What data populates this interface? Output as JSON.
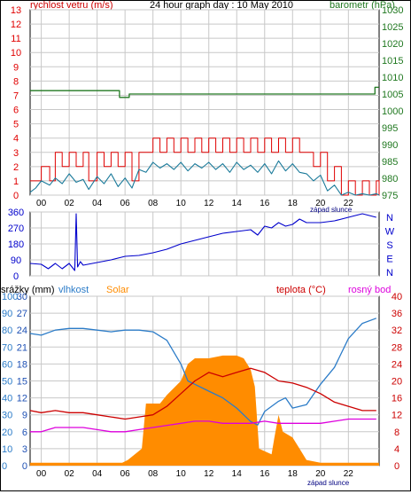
{
  "header": {
    "left_title": "rychlost vetru (m/s)",
    "center_title": "24 hour graph day : 10 May 2010",
    "right_title": "barometr (hPa)"
  },
  "x_axis": {
    "tick_labels": [
      "00",
      "02",
      "04",
      "06",
      "08",
      "10",
      "12",
      "14",
      "16",
      "18",
      "20",
      "22"
    ],
    "sunset_label": "západ slunce"
  },
  "legend": {
    "precip": "srážky (mm)",
    "humidity": "vlhkost",
    "solar": "Solar",
    "temperature": "teplota (°C)",
    "dewpoint": "rosný bod"
  },
  "colors": {
    "wind_gust": "#e00000",
    "wind_avg": "#1a7a9a",
    "pressure": "#207820",
    "direction": "#0000cc",
    "humidity": "#2c7cc8",
    "solar": "#ff8c00",
    "temperature": "#cc0000",
    "dewpoint": "#dd00dd",
    "grid": "#c8c8c8",
    "precip_axis": "#1e50b4",
    "temp_axis": "#cc0000"
  },
  "chart_data": [
    {
      "id": "wind-pressure",
      "type": "line",
      "x_range": [
        -0.8,
        24.2
      ],
      "left_axis": {
        "ylim": [
          0,
          13
        ],
        "ticks": [
          0,
          1,
          2,
          3,
          4,
          5,
          6,
          7,
          8,
          9,
          10,
          11,
          12,
          13
        ]
      },
      "right_axis": {
        "ylim": [
          975,
          1030
        ],
        "ticks": [
          975,
          980,
          985,
          990,
          995,
          1000,
          1005,
          1010,
          1015,
          1020,
          1025,
          1030
        ]
      },
      "series": [
        {
          "key": "gust",
          "axis": "left",
          "x": [
            -0.8,
            -0.4,
            0,
            0.6,
            1,
            1.5,
            2,
            2.5,
            3,
            3.4,
            4,
            4.5,
            5,
            5.5,
            6,
            6.5,
            7,
            7.5,
            8,
            8.5,
            9,
            9.5,
            10,
            10.5,
            11,
            11.5,
            12,
            12.5,
            13,
            13.5,
            14,
            14.5,
            15,
            15.5,
            16,
            16.5,
            17,
            17.5,
            18,
            18.5,
            19,
            19.5,
            20,
            20.5,
            21,
            21.5,
            22,
            22.5,
            23,
            23.5,
            24,
            24.2
          ],
          "values": [
            1,
            1,
            2,
            1,
            3,
            2,
            3,
            2,
            3,
            1,
            3,
            2,
            3,
            2,
            3,
            1,
            3,
            3,
            4,
            3,
            4,
            3,
            4,
            3,
            4,
            3,
            4,
            3,
            4,
            3,
            4,
            3,
            4,
            3,
            4,
            3,
            4,
            3,
            4,
            3,
            3,
            2,
            3,
            1,
            2,
            0,
            1,
            0,
            1,
            0,
            1,
            0
          ]
        },
        {
          "key": "avg",
          "axis": "left",
          "x": [
            -0.8,
            -0.4,
            0,
            0.6,
            1,
            1.5,
            2,
            2.5,
            3,
            3.4,
            4,
            4.5,
            5,
            5.5,
            6,
            6.5,
            7,
            7.5,
            8,
            8.5,
            9,
            9.5,
            10,
            10.5,
            11,
            11.5,
            12,
            12.5,
            13,
            13.5,
            14,
            14.5,
            15,
            15.5,
            16,
            16.5,
            17,
            17.5,
            18,
            18.5,
            19,
            19.5,
            20,
            20.5,
            21,
            21.5,
            22,
            22.5,
            23,
            23.5,
            24,
            24.2
          ],
          "values": [
            0.2,
            0.5,
            1,
            0.7,
            1.2,
            0.8,
            1.5,
            0.9,
            1.1,
            0.4,
            1.3,
            0.8,
            1.5,
            0.6,
            1.2,
            0.5,
            1.8,
            1.6,
            2.3,
            1.9,
            2.2,
            1.8,
            2.3,
            1.7,
            2.2,
            1.9,
            2.3,
            1.8,
            2.2,
            1.6,
            2.3,
            1.8,
            2.1,
            1.6,
            2.2,
            1.5,
            2.4,
            1.7,
            2.2,
            1.6,
            1.5,
            1,
            1.4,
            0.3,
            0.7,
            0,
            0.2,
            0,
            0.1,
            0,
            0.1,
            0
          ]
        },
        {
          "key": "pressure",
          "axis": "right",
          "x": [
            -0.8,
            5.5,
            5.6,
            6.2,
            6.3,
            19.6,
            19.7,
            23.8,
            23.9,
            24.2
          ],
          "values": [
            1006,
            1006,
            1004,
            1004,
            1005,
            1005,
            1005,
            1005,
            1007,
            1007
          ]
        }
      ]
    },
    {
      "id": "wind-direction",
      "type": "line",
      "x_range": [
        -0.8,
        24.2
      ],
      "ylim": [
        0,
        360
      ],
      "ticks": [
        0,
        90,
        180,
        270,
        360
      ],
      "compass": [
        "N",
        "W",
        "S",
        "E",
        "N"
      ],
      "series": [
        {
          "key": "direction",
          "x": [
            -0.8,
            0,
            0.5,
            1,
            1.5,
            2,
            2.4,
            2.5,
            2.6,
            2.8,
            3,
            4,
            5,
            6,
            7,
            8,
            9,
            10,
            11,
            12,
            13,
            14,
            15,
            15.5,
            16,
            16.5,
            17,
            17.5,
            18,
            18.5,
            19,
            20,
            21,
            22,
            23,
            24
          ],
          "values": [
            70,
            65,
            40,
            70,
            40,
            70,
            30,
            350,
            50,
            80,
            60,
            75,
            90,
            110,
            115,
            130,
            150,
            180,
            200,
            220,
            240,
            250,
            260,
            230,
            280,
            270,
            300,
            280,
            290,
            320,
            300,
            300,
            310,
            330,
            350,
            330
          ]
        }
      ]
    },
    {
      "id": "temp-humidity-solar",
      "type": "line",
      "x_range": [
        -0.8,
        24.2
      ],
      "left_axes": {
        "precip": {
          "ylim": [
            0,
            30
          ],
          "ticks": [
            0,
            3,
            6,
            9,
            12,
            15,
            18,
            21,
            24,
            27,
            30
          ]
        },
        "humidity": {
          "ylim": [
            0,
            100
          ],
          "ticks": [
            0,
            10,
            20,
            30,
            40,
            50,
            60,
            70,
            80,
            90,
            100
          ]
        }
      },
      "right_axis": {
        "ylim": [
          0,
          40
        ],
        "ticks": [
          0,
          4,
          8,
          12,
          16,
          20,
          24,
          28,
          32,
          36,
          40
        ]
      },
      "series": [
        {
          "key": "humidity",
          "axis": "humidity",
          "x": [
            -0.8,
            0,
            1,
            2,
            3,
            4,
            5,
            6,
            7,
            8,
            9,
            10,
            10.5,
            11,
            12,
            13,
            14,
            15,
            15.5,
            16,
            17,
            17.5,
            18,
            19,
            20,
            21,
            22,
            23,
            24
          ],
          "values": [
            78,
            77,
            80,
            81,
            81,
            80,
            79,
            80,
            80,
            79,
            74,
            60,
            50,
            48,
            44,
            40,
            34,
            26,
            24,
            32,
            38,
            40,
            34,
            36,
            48,
            58,
            75,
            84,
            87
          ]
        },
        {
          "key": "solar",
          "axis": "precip",
          "x": [
            -0.8,
            5.8,
            6.2,
            7.2,
            7.5,
            8.5,
            9,
            10,
            10.5,
            11,
            12,
            13,
            14,
            14.5,
            15,
            15.3,
            15.6,
            16.5,
            16.7,
            17,
            17.3,
            18,
            18.5,
            19,
            20,
            24.2
          ],
          "values": [
            0.5,
            0.5,
            1,
            3,
            11,
            11,
            12.5,
            15,
            18,
            19,
            19,
            19.5,
            19.5,
            19,
            17,
            14,
            3,
            2,
            5,
            9,
            6,
            5,
            3,
            1,
            0.5,
            0.5
          ]
        },
        {
          "key": "temperature",
          "axis": "right",
          "x": [
            -0.8,
            0,
            1,
            2,
            3,
            4,
            5,
            6,
            7,
            8,
            9,
            10,
            11,
            12,
            13,
            14,
            15,
            16,
            17,
            18,
            19,
            20,
            21,
            22,
            23,
            24
          ],
          "values": [
            13,
            12.5,
            13,
            12.5,
            12.5,
            12,
            11.5,
            11,
            11.5,
            12,
            14,
            17,
            20,
            22,
            21,
            22,
            23,
            22,
            20,
            19.5,
            18.5,
            17,
            15,
            14,
            13,
            13
          ]
        },
        {
          "key": "dewpoint",
          "axis": "right",
          "x": [
            -0.8,
            0,
            1,
            2,
            3,
            4,
            5,
            6,
            7,
            8,
            9,
            10,
            11,
            12,
            13,
            14,
            15,
            16,
            17,
            18,
            19,
            20,
            21,
            22,
            23,
            24
          ],
          "values": [
            8,
            8,
            9,
            9,
            9,
            8.5,
            8,
            8,
            8.5,
            9,
            9.5,
            10,
            10.5,
            10.5,
            10,
            10,
            10,
            10.5,
            10,
            10,
            10,
            10,
            10.5,
            11,
            11,
            11
          ]
        }
      ]
    }
  ]
}
